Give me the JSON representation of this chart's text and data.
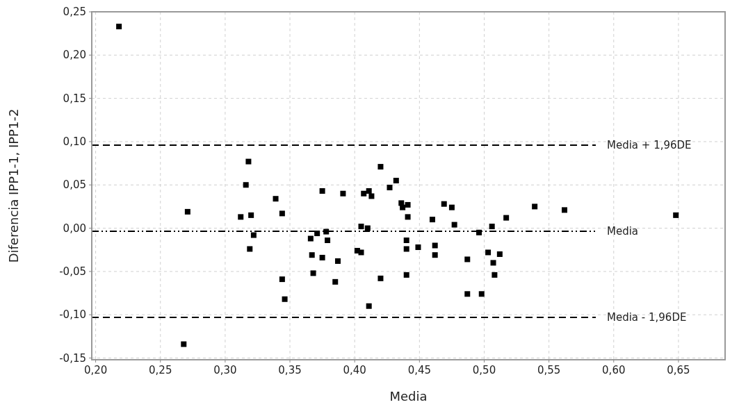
{
  "chart_data": {
    "type": "scatter",
    "xlabel": "Media",
    "ylabel": "Diferencia IPP1-1, IPP1-2",
    "xlim": [
      0.197,
      0.686
    ],
    "ylim": [
      -0.152,
      0.25
    ],
    "xticks": [
      {
        "value": 0.2,
        "label": "0,20"
      },
      {
        "value": 0.25,
        "label": "0,25"
      },
      {
        "value": 0.3,
        "label": "0,30"
      },
      {
        "value": 0.35,
        "label": "0,35"
      },
      {
        "value": 0.4,
        "label": "0,40"
      },
      {
        "value": 0.45,
        "label": "0,45"
      },
      {
        "value": 0.5,
        "label": "0,50"
      },
      {
        "value": 0.55,
        "label": "0,55"
      },
      {
        "value": 0.6,
        "label": "0,60"
      },
      {
        "value": 0.65,
        "label": "0,65"
      }
    ],
    "yticks": [
      {
        "value": -0.15,
        "label": "-0,15"
      },
      {
        "value": -0.1,
        "label": "-0,10"
      },
      {
        "value": -0.05,
        "label": "-0,05"
      },
      {
        "value": 0,
        "label": "0,00"
      },
      {
        "value": 0.05,
        "label": "0,05"
      },
      {
        "value": 0.1,
        "label": "0,10"
      },
      {
        "value": 0.15,
        "label": "0,15"
      },
      {
        "value": 0.2,
        "label": "0,20"
      },
      {
        "value": 0.25,
        "label": "0,25"
      }
    ],
    "grid": true,
    "marker": "square",
    "ref_lines": [
      {
        "axis": "y",
        "value": 0.096,
        "label": "Media + 1,96DE",
        "color": "#000000",
        "line_style": "dashed"
      },
      {
        "axis": "y",
        "value": -0.0035,
        "label": "Media",
        "color": "#000000",
        "line_style": "dotted"
      },
      {
        "axis": "y",
        "value": -0.103,
        "label": "Media - 1,96DE",
        "color": "#000000",
        "line_style": "dashed"
      }
    ],
    "series": [
      {
        "color": "#000000",
        "x": [
          0.218,
          0.318,
          0.316,
          0.339,
          0.271,
          0.312,
          0.32,
          0.344,
          0.322,
          0.319,
          0.344,
          0.346,
          0.268,
          0.366,
          0.367,
          0.368,
          0.42,
          0.432,
          0.427,
          0.375,
          0.391,
          0.407,
          0.411,
          0.413,
          0.436,
          0.441,
          0.437,
          0.441,
          0.46,
          0.469,
          0.475,
          0.477,
          0.517,
          0.539,
          0.562,
          0.648,
          0.405,
          0.41,
          0.506,
          0.496,
          0.371,
          0.378,
          0.379,
          0.44,
          0.44,
          0.449,
          0.462,
          0.462,
          0.402,
          0.405,
          0.375,
          0.387,
          0.385,
          0.42,
          0.44,
          0.411,
          0.487,
          0.487,
          0.498,
          0.503,
          0.512,
          0.507,
          0.508
        ],
        "values": [
          0.233,
          0.077,
          0.05,
          0.034,
          0.019,
          0.013,
          0.015,
          0.017,
          -0.008,
          -0.024,
          -0.059,
          -0.082,
          -0.134,
          -0.012,
          -0.031,
          -0.052,
          0.071,
          0.055,
          0.047,
          0.043,
          0.04,
          0.04,
          0.043,
          0.037,
          0.029,
          0.027,
          0.024,
          0.013,
          0.01,
          0.028,
          0.024,
          0.004,
          0.012,
          0.025,
          0.021,
          0.015,
          0.002,
          0.0,
          0.002,
          -0.005,
          -0.006,
          -0.004,
          -0.014,
          -0.014,
          -0.024,
          -0.022,
          -0.02,
          -0.031,
          -0.026,
          -0.028,
          -0.034,
          -0.038,
          -0.062,
          -0.058,
          -0.054,
          -0.09,
          -0.036,
          -0.076,
          -0.076,
          -0.028,
          -0.03,
          -0.04,
          -0.054
        ]
      }
    ]
  }
}
